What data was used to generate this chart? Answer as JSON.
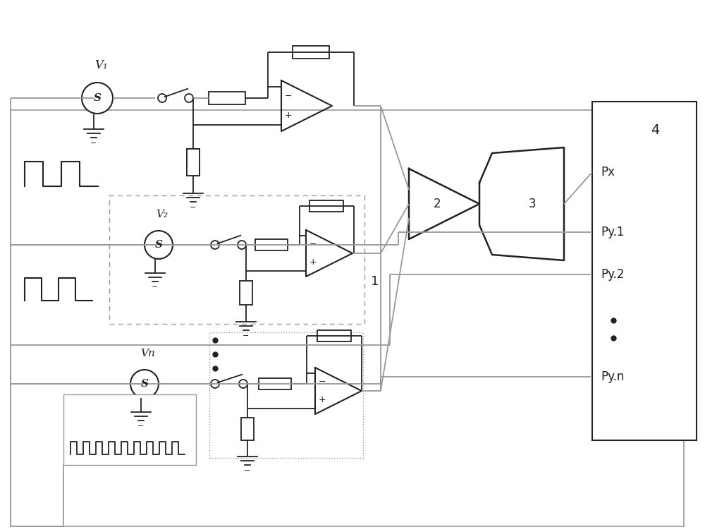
{
  "bg_color": "#ffffff",
  "lc": "#222222",
  "gc": "#999999",
  "figsize": [
    10.0,
    7.54
  ],
  "dpi": 100,
  "labels": {
    "V1": "V₁",
    "V2": "V₂",
    "Vn": "Vn",
    "b2": "2",
    "b3": "3",
    "b4": "4",
    "Px": "Px",
    "Py1": "Py.1",
    "Py2": "Py.2",
    "Pyn": "Py.n",
    "n1": "1"
  }
}
